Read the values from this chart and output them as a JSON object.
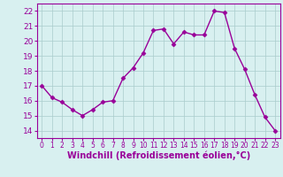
{
  "x": [
    0,
    1,
    2,
    3,
    4,
    5,
    6,
    7,
    8,
    9,
    10,
    11,
    12,
    13,
    14,
    15,
    16,
    17,
    18,
    19,
    20,
    21,
    22,
    23
  ],
  "y": [
    17.0,
    16.2,
    15.9,
    15.4,
    15.0,
    15.4,
    15.9,
    16.0,
    17.5,
    18.2,
    19.2,
    20.7,
    20.8,
    19.8,
    20.6,
    20.4,
    20.4,
    22.0,
    21.9,
    19.5,
    18.1,
    16.4,
    14.9,
    14.0
  ],
  "line_color": "#990099",
  "marker": "D",
  "marker_size": 2.5,
  "line_width": 1.0,
  "xlabel": "Windchill (Refroidissement éolien,°C)",
  "xlabel_fontsize": 7,
  "xtick_labels": [
    "0",
    "1",
    "2",
    "3",
    "4",
    "5",
    "6",
    "7",
    "8",
    "9",
    "10",
    "11",
    "12",
    "13",
    "14",
    "15",
    "16",
    "17",
    "18",
    "19",
    "20",
    "21",
    "22",
    "23"
  ],
  "ylim": [
    13.5,
    22.5
  ],
  "xlim": [
    -0.5,
    23.5
  ],
  "yticks": [
    14,
    15,
    16,
    17,
    18,
    19,
    20,
    21,
    22
  ],
  "ytick_fontsize": 6.5,
  "xtick_fontsize": 5.5,
  "bg_color": "#d8f0f0",
  "grid_color": "#aacccc",
  "tick_color": "#990099",
  "label_color": "#990099",
  "spine_color": "#990099"
}
